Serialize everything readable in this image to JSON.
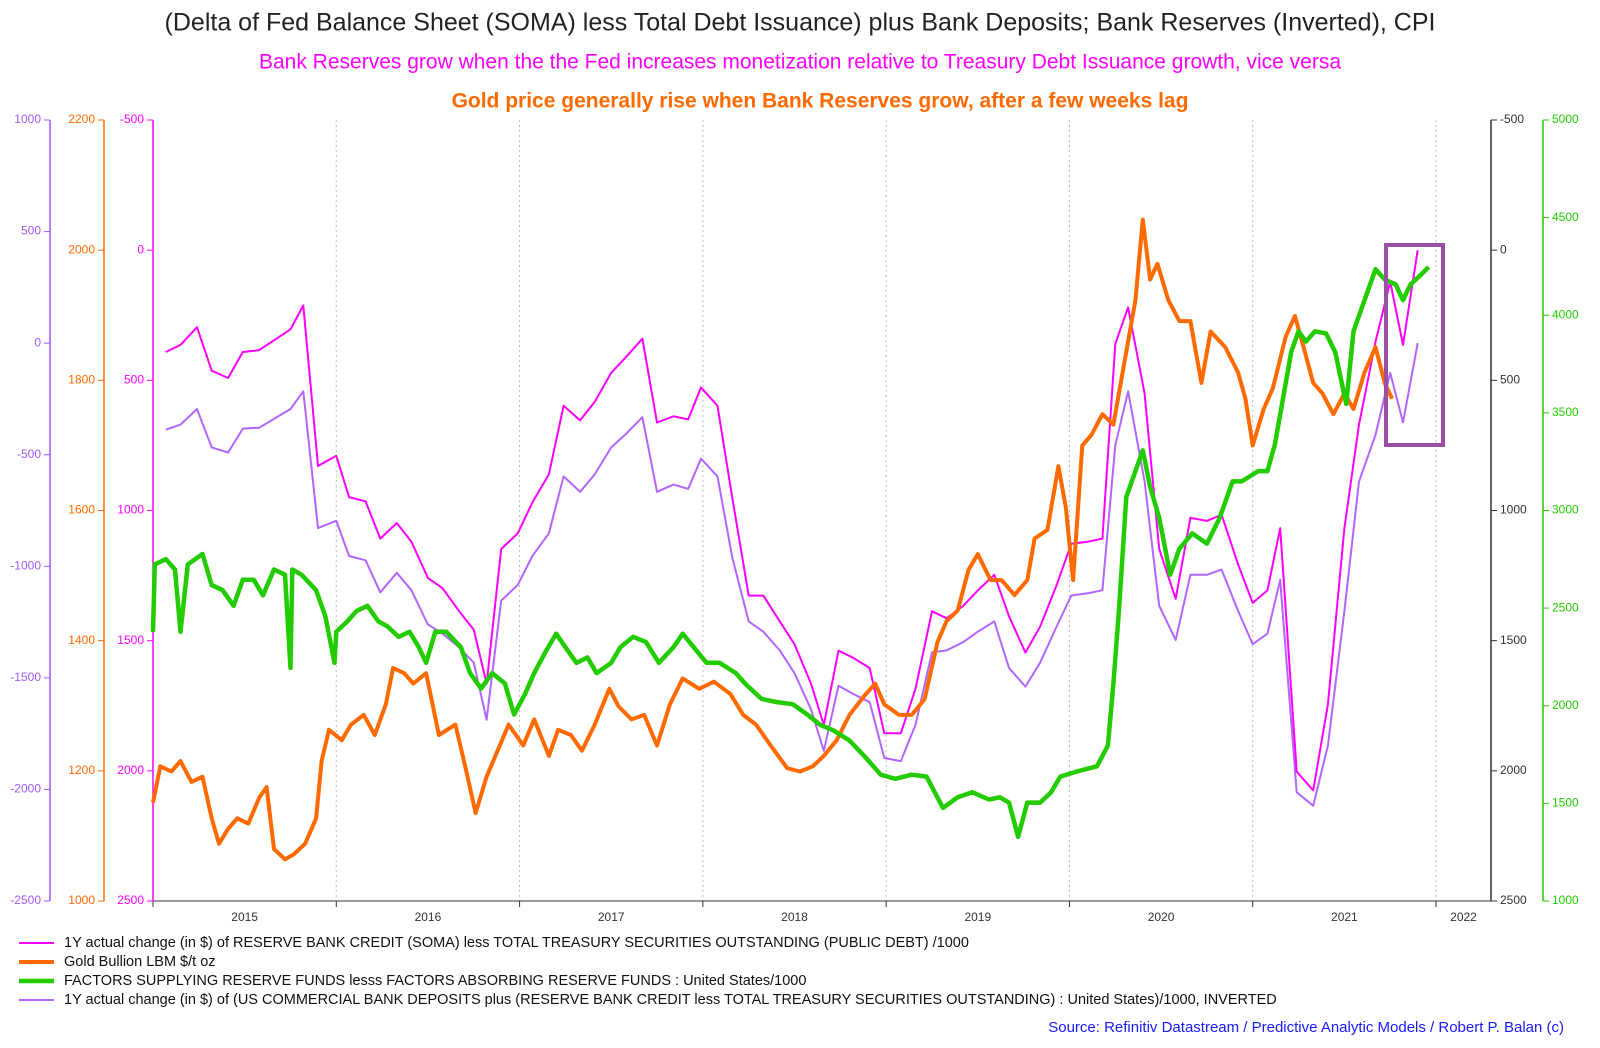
{
  "chart_data": {
    "type": "line",
    "title": "(Delta of Fed Balance Sheet (SOMA) less Total Debt Issuance) plus Bank Deposits; Bank Reserves (Inverted), CPI",
    "subtitle": "Bank Reserves grow when the the Fed increases monetization relative to Treasury Debt Issuance growth, vice versa",
    "annotation": "Gold price generally rise when Bank Reserves grow, after a few weeks lag",
    "source": "Source: Refinitiv Datastream / Predictive Analytic Models / Robert P. Balan (c)",
    "xlim": [
      2015,
      2022.3
    ],
    "xticks": [
      2015,
      2016,
      2017,
      2018,
      2019,
      2020,
      2021,
      2022
    ],
    "grid": true,
    "axes": [
      {
        "side": "left",
        "color": "#a259f7",
        "lim": [
          -2500,
          1000
        ],
        "ticks": [
          -2500,
          -2000,
          -1500,
          -1000,
          -500,
          0,
          500,
          1000
        ]
      },
      {
        "side": "left",
        "color": "#ff6a00",
        "lim": [
          1000,
          2200
        ],
        "ticks": [
          1000,
          1200,
          1400,
          1600,
          1800,
          2000,
          2200
        ]
      },
      {
        "side": "left",
        "color": "#ff00ff",
        "lim": [
          2500,
          -500
        ],
        "ticks": [
          -500,
          0,
          500,
          1000,
          1500,
          2000,
          2500
        ]
      },
      {
        "side": "right",
        "color": "#333333",
        "lim": [
          2500,
          -500
        ],
        "ticks": [
          -500,
          0,
          500,
          1000,
          1500,
          2000,
          2500
        ]
      },
      {
        "side": "right",
        "color": "#22cc00",
        "lim": [
          1000,
          5000
        ],
        "ticks": [
          1000,
          1500,
          2000,
          2500,
          3000,
          3500,
          4000,
          4500,
          5000
        ]
      }
    ],
    "series": [
      {
        "name": "1Y actual change (in $) of RESERVE BANK CREDIT (SOMA) less TOTAL TREASURY SECURITIES OUTSTANDING (PUBLIC DEBT) /1000",
        "color": "#ff00ff",
        "axis": 2,
        "x": [
          2015.07,
          2015.15,
          2015.24,
          2015.32,
          2015.41,
          2015.49,
          2015.58,
          2015.75,
          2015.82,
          2015.9,
          2016.0,
          2016.07,
          2016.16,
          2016.24,
          2016.33,
          2016.41,
          2016.5,
          2016.58,
          2016.67,
          2016.75,
          2016.82,
          2016.9,
          2016.99,
          2017.07,
          2017.16,
          2017.24,
          2017.33,
          2017.41,
          2017.5,
          2017.58,
          2017.67,
          2017.75,
          2017.84,
          2017.92,
          2017.99,
          2018.08,
          2018.16,
          2018.25,
          2018.33,
          2018.42,
          2018.5,
          2018.59,
          2018.66,
          2018.74,
          2018.82,
          2018.91,
          2018.99,
          2019.08,
          2019.16,
          2019.25,
          2019.33,
          2019.42,
          2019.5,
          2019.59,
          2019.67,
          2019.76,
          2019.84,
          2019.93,
          2020.01,
          2020.1,
          2020.18,
          2020.25,
          2020.32,
          2020.41,
          2020.49,
          2020.58,
          2020.66,
          2020.75,
          2020.83,
          2020.92,
          2021.0,
          2021.08,
          2021.15,
          2021.24,
          2021.33,
          2021.41,
          2021.5,
          2021.58,
          2021.67,
          2021.75,
          2021.82,
          2021.9
        ],
        "values": [
          391,
          364,
          296,
          463,
          491,
          391,
          384,
          304,
          212,
          829,
          790,
          949,
          965,
          1108,
          1048,
          1120,
          1259,
          1299,
          1387,
          1458,
          1665,
          1148,
          1088,
          969,
          861,
          598,
          654,
          583,
          471,
          411,
          340,
          662,
          638,
          650,
          527,
          598,
          949,
          1327,
          1327,
          1426,
          1514,
          1665,
          1824,
          1538,
          1566,
          1605,
          1856,
          1856,
          1685,
          1387,
          1414,
          1367,
          1307,
          1247,
          1406,
          1546,
          1446,
          1287,
          1128,
          1120,
          1108,
          360,
          220,
          551,
          1148,
          1339,
          1028,
          1040,
          1016,
          1207,
          1355,
          1307,
          1068,
          2003,
          2075,
          1745,
          1068,
          670,
          352,
          121,
          364,
          0
        ]
      },
      {
        "name": "Gold Bullion LBM $/t oz",
        "color": "#ff6a00",
        "axis": 1,
        "x": [
          2015.0,
          2015.04,
          2015.1,
          2015.15,
          2015.21,
          2015.27,
          2015.32,
          2015.36,
          2015.41,
          2015.46,
          2015.52,
          2015.58,
          2015.62,
          2015.66,
          2015.72,
          2015.77,
          2015.83,
          2015.89,
          2015.92,
          2015.96,
          2016.03,
          2016.08,
          2016.15,
          2016.21,
          2016.27,
          2016.31,
          2016.37,
          2016.42,
          2016.49,
          2016.56,
          2016.65,
          2016.71,
          2016.76,
          2016.82,
          2016.88,
          2016.94,
          2017.02,
          2017.08,
          2017.16,
          2017.21,
          2017.28,
          2017.34,
          2017.41,
          2017.49,
          2017.54,
          2017.61,
          2017.68,
          2017.75,
          2017.82,
          2017.89,
          2017.98,
          2018.06,
          2018.15,
          2018.22,
          2018.29,
          2018.37,
          2018.46,
          2018.53,
          2018.6,
          2018.66,
          2018.73,
          2018.8,
          2018.88,
          2018.94,
          2018.99,
          2019.07,
          2019.14,
          2019.21,
          2019.28,
          2019.33,
          2019.39,
          2019.45,
          2019.5,
          2019.57,
          2019.63,
          2019.7,
          2019.77,
          2019.81,
          2019.88,
          2019.94,
          2019.98,
          2020.02,
          2020.07,
          2020.12,
          2020.18,
          2020.24,
          2020.29,
          2020.36,
          2020.4,
          2020.44,
          2020.48,
          2020.54,
          2020.6,
          2020.66,
          2020.72,
          2020.77,
          2020.85,
          2020.92,
          2020.96,
          2021.0,
          2021.06,
          2021.11,
          2021.18,
          2021.23,
          2021.27,
          2021.33,
          2021.38,
          2021.44,
          2021.5,
          2021.55,
          2021.61,
          2021.67,
          2021.72,
          2021.76
        ],
        "values": [
          1151,
          1207,
          1199,
          1215,
          1183,
          1191,
          1127,
          1088,
          1111,
          1127,
          1119,
          1159,
          1175,
          1080,
          1064,
          1072,
          1088,
          1127,
          1215,
          1263,
          1247,
          1271,
          1286,
          1255,
          1302,
          1358,
          1350,
          1334,
          1350,
          1255,
          1271,
          1199,
          1135,
          1191,
          1231,
          1271,
          1239,
          1279,
          1223,
          1263,
          1255,
          1231,
          1271,
          1326,
          1299,
          1279,
          1286,
          1239,
          1302,
          1342,
          1326,
          1337,
          1318,
          1286,
          1271,
          1239,
          1204,
          1199,
          1207,
          1223,
          1247,
          1286,
          1315,
          1334,
          1302,
          1286,
          1286,
          1310,
          1398,
          1430,
          1446,
          1509,
          1533,
          1493,
          1493,
          1470,
          1493,
          1557,
          1570,
          1668,
          1605,
          1493,
          1700,
          1716,
          1748,
          1732,
          1812,
          1923,
          2047,
          1955,
          1979,
          1923,
          1891,
          1891,
          1796,
          1875,
          1851,
          1812,
          1772,
          1700,
          1756,
          1788,
          1867,
          1899,
          1859,
          1796,
          1780,
          1748,
          1780,
          1756,
          1812,
          1851,
          1796,
          1772
        ]
      },
      {
        "name": "FACTORS SUPPLYING RESERVE FUNDS lesss FACTORS ABSORBING RESERVE FUNDS : United States/1000",
        "color": "#22cc00",
        "axis": 4,
        "x": [
          2015.0,
          2015.01,
          2015.07,
          2015.12,
          2015.15,
          2015.19,
          2015.27,
          2015.32,
          2015.38,
          2015.44,
          2015.49,
          2015.55,
          2015.6,
          2015.66,
          2015.72,
          2015.75,
          2015.76,
          2015.81,
          2015.89,
          2015.94,
          2015.99,
          2016.0,
          2016.06,
          2016.11,
          2016.17,
          2016.23,
          2016.28,
          2016.34,
          2016.4,
          2016.45,
          2016.49,
          2016.54,
          2016.6,
          2016.68,
          2016.73,
          2016.79,
          2016.85,
          2016.92,
          2016.97,
          2017.03,
          2017.08,
          2017.14,
          2017.2,
          2017.25,
          2017.31,
          2017.37,
          2017.42,
          2017.5,
          2017.55,
          2017.62,
          2017.69,
          2017.76,
          2017.84,
          2017.89,
          2017.95,
          2018.02,
          2018.09,
          2018.18,
          2018.23,
          2018.32,
          2018.4,
          2018.49,
          2018.57,
          2018.64,
          2018.71,
          2018.8,
          2018.88,
          2018.97,
          2019.05,
          2019.14,
          2019.22,
          2019.31,
          2019.39,
          2019.47,
          2019.56,
          2019.62,
          2019.67,
          2019.72,
          2019.77,
          2019.84,
          2019.9,
          2019.95,
          2020.04,
          2020.15,
          2020.21,
          2020.24,
          2020.27,
          2020.31,
          2020.35,
          2020.4,
          2020.44,
          2020.49,
          2020.55,
          2020.6,
          2020.67,
          2020.75,
          2020.82,
          2020.89,
          2020.94,
          2021.03,
          2021.08,
          2021.12,
          2021.17,
          2021.21,
          2021.25,
          2021.29,
          2021.34,
          2021.4,
          2021.45,
          2021.51,
          2021.55,
          2021.61,
          2021.67,
          2021.72,
          2021.78,
          2021.82,
          2021.86,
          2021.92,
          2021.96
        ],
        "values": [
          2379,
          2724,
          2751,
          2698,
          2379,
          2724,
          2777,
          2618,
          2592,
          2512,
          2645,
          2645,
          2565,
          2698,
          2671,
          2194,
          2698,
          2671,
          2592,
          2459,
          2220,
          2379,
          2432,
          2485,
          2512,
          2432,
          2406,
          2353,
          2379,
          2300,
          2220,
          2379,
          2379,
          2300,
          2167,
          2088,
          2167,
          2114,
          1955,
          2061,
          2167,
          2273,
          2369,
          2300,
          2220,
          2247,
          2167,
          2220,
          2300,
          2353,
          2326,
          2220,
          2300,
          2369,
          2300,
          2220,
          2220,
          2167,
          2114,
          2035,
          2019,
          2008,
          1955,
          1902,
          1875,
          1822,
          1743,
          1647,
          1626,
          1647,
          1637,
          1477,
          1531,
          1557,
          1520,
          1531,
          1504,
          1329,
          1504,
          1504,
          1557,
          1637,
          1663,
          1690,
          1796,
          2114,
          2485,
          3069,
          3175,
          3308,
          3122,
          2963,
          2671,
          2804,
          2883,
          2830,
          2963,
          3149,
          3149,
          3202,
          3202,
          3334,
          3599,
          3812,
          3918,
          3865,
          3918,
          3907,
          3812,
          3546,
          3918,
          4077,
          4236,
          4183,
          4157,
          4077,
          4157,
          4210,
          4247
        ]
      },
      {
        "name": "1Y actual change (in $) of (US COMMERCIAL BANK DEPOSITS plus (RESERVE BANK CREDIT less TOTAL TREASURY SECURITIES OUTSTANDING) : United States)/1000, INVERTED",
        "color": "#b266ff",
        "axis": 0,
        "x": [
          2015.07,
          2015.15,
          2015.24,
          2015.32,
          2015.41,
          2015.49,
          2015.58,
          2015.75,
          2015.82,
          2015.9,
          2016.0,
          2016.07,
          2016.16,
          2016.24,
          2016.33,
          2016.41,
          2016.5,
          2016.58,
          2016.67,
          2016.75,
          2016.82,
          2016.9,
          2016.99,
          2017.07,
          2017.16,
          2017.24,
          2017.33,
          2017.41,
          2017.5,
          2017.58,
          2017.67,
          2017.75,
          2017.84,
          2017.92,
          2017.99,
          2018.08,
          2018.16,
          2018.25,
          2018.33,
          2018.42,
          2018.5,
          2018.59,
          2018.66,
          2018.74,
          2018.82,
          2018.91,
          2018.99,
          2019.08,
          2019.16,
          2019.25,
          2019.33,
          2019.42,
          2019.5,
          2019.59,
          2019.67,
          2019.76,
          2019.84,
          2019.93,
          2020.01,
          2020.1,
          2020.18,
          2020.25,
          2020.32,
          2020.41,
          2020.49,
          2020.58,
          2020.66,
          2020.75,
          2020.83,
          2020.92,
          2021.0,
          2021.08,
          2021.15,
          2021.24,
          2021.33,
          2021.41,
          2021.5,
          2021.58,
          2021.67,
          2021.75,
          2021.82,
          2021.9
        ],
        "values": [
          -388,
          -365,
          -295,
          -467,
          -490,
          -383,
          -379,
          -295,
          -216,
          -829,
          -796,
          -954,
          -973,
          -1117,
          -1029,
          -1107,
          -1261,
          -1302,
          -1363,
          -1432,
          -1688,
          -1154,
          -1084,
          -954,
          -852,
          -597,
          -666,
          -588,
          -467,
          -407,
          -332,
          -666,
          -634,
          -653,
          -518,
          -597,
          -959,
          -1247,
          -1293,
          -1377,
          -1479,
          -1641,
          -1827,
          -1535,
          -1572,
          -1609,
          -1859,
          -1873,
          -1711,
          -1386,
          -1377,
          -1340,
          -1293,
          -1247,
          -1456,
          -1539,
          -1432,
          -1270,
          -1131,
          -1121,
          -1107,
          -458,
          -216,
          -620,
          -1177,
          -1330,
          -1038,
          -1038,
          -1015,
          -1200,
          -1349,
          -1302,
          -1061,
          -2013,
          -2073,
          -1804,
          -1200,
          -620,
          -411,
          -133,
          -355,
          0
        ]
      }
    ]
  }
}
